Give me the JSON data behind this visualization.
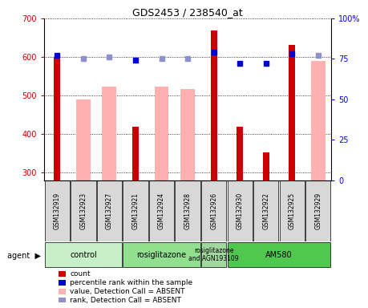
{
  "title": "GDS2453 / 238540_at",
  "samples": [
    "GSM132919",
    "GSM132923",
    "GSM132927",
    "GSM132921",
    "GSM132924",
    "GSM132928",
    "GSM132926",
    "GSM132930",
    "GSM132922",
    "GSM132925",
    "GSM132929"
  ],
  "count_values": [
    600,
    null,
    null,
    418,
    null,
    null,
    668,
    418,
    352,
    632,
    null
  ],
  "absent_values": [
    null,
    490,
    524,
    null,
    522,
    516,
    null,
    null,
    null,
    null,
    590
  ],
  "percentile_dark": [
    77,
    null,
    null,
    74,
    null,
    null,
    79,
    72,
    72,
    78,
    null
  ],
  "percentile_light": [
    null,
    75,
    76,
    null,
    75,
    75,
    null,
    null,
    null,
    null,
    77
  ],
  "ylim_left": [
    280,
    700
  ],
  "ylim_right": [
    0,
    100
  ],
  "yticks_left": [
    300,
    400,
    500,
    600,
    700
  ],
  "yticks_right": [
    0,
    25,
    50,
    75,
    100
  ],
  "agent_groups": [
    {
      "label": "control",
      "start": 0,
      "end": 2,
      "color": "#c8f0c8"
    },
    {
      "label": "rosiglitazone",
      "start": 3,
      "end": 5,
      "color": "#90e090"
    },
    {
      "label": "rosiglitazone\nand AGN193109",
      "start": 6,
      "end": 6,
      "color": "#a0d8a0"
    },
    {
      "label": "AM580",
      "start": 7,
      "end": 10,
      "color": "#50c850"
    }
  ],
  "bar_color_red": "#cc0000",
  "bar_color_pink": "#ffb0b0",
  "dot_color_dark_blue": "#0000cc",
  "dot_color_light_blue": "#9090cc",
  "background_color": "#d8d8d8",
  "plot_bg": "#ffffff",
  "fig_width": 4.59,
  "fig_height": 3.84,
  "dpi": 100
}
